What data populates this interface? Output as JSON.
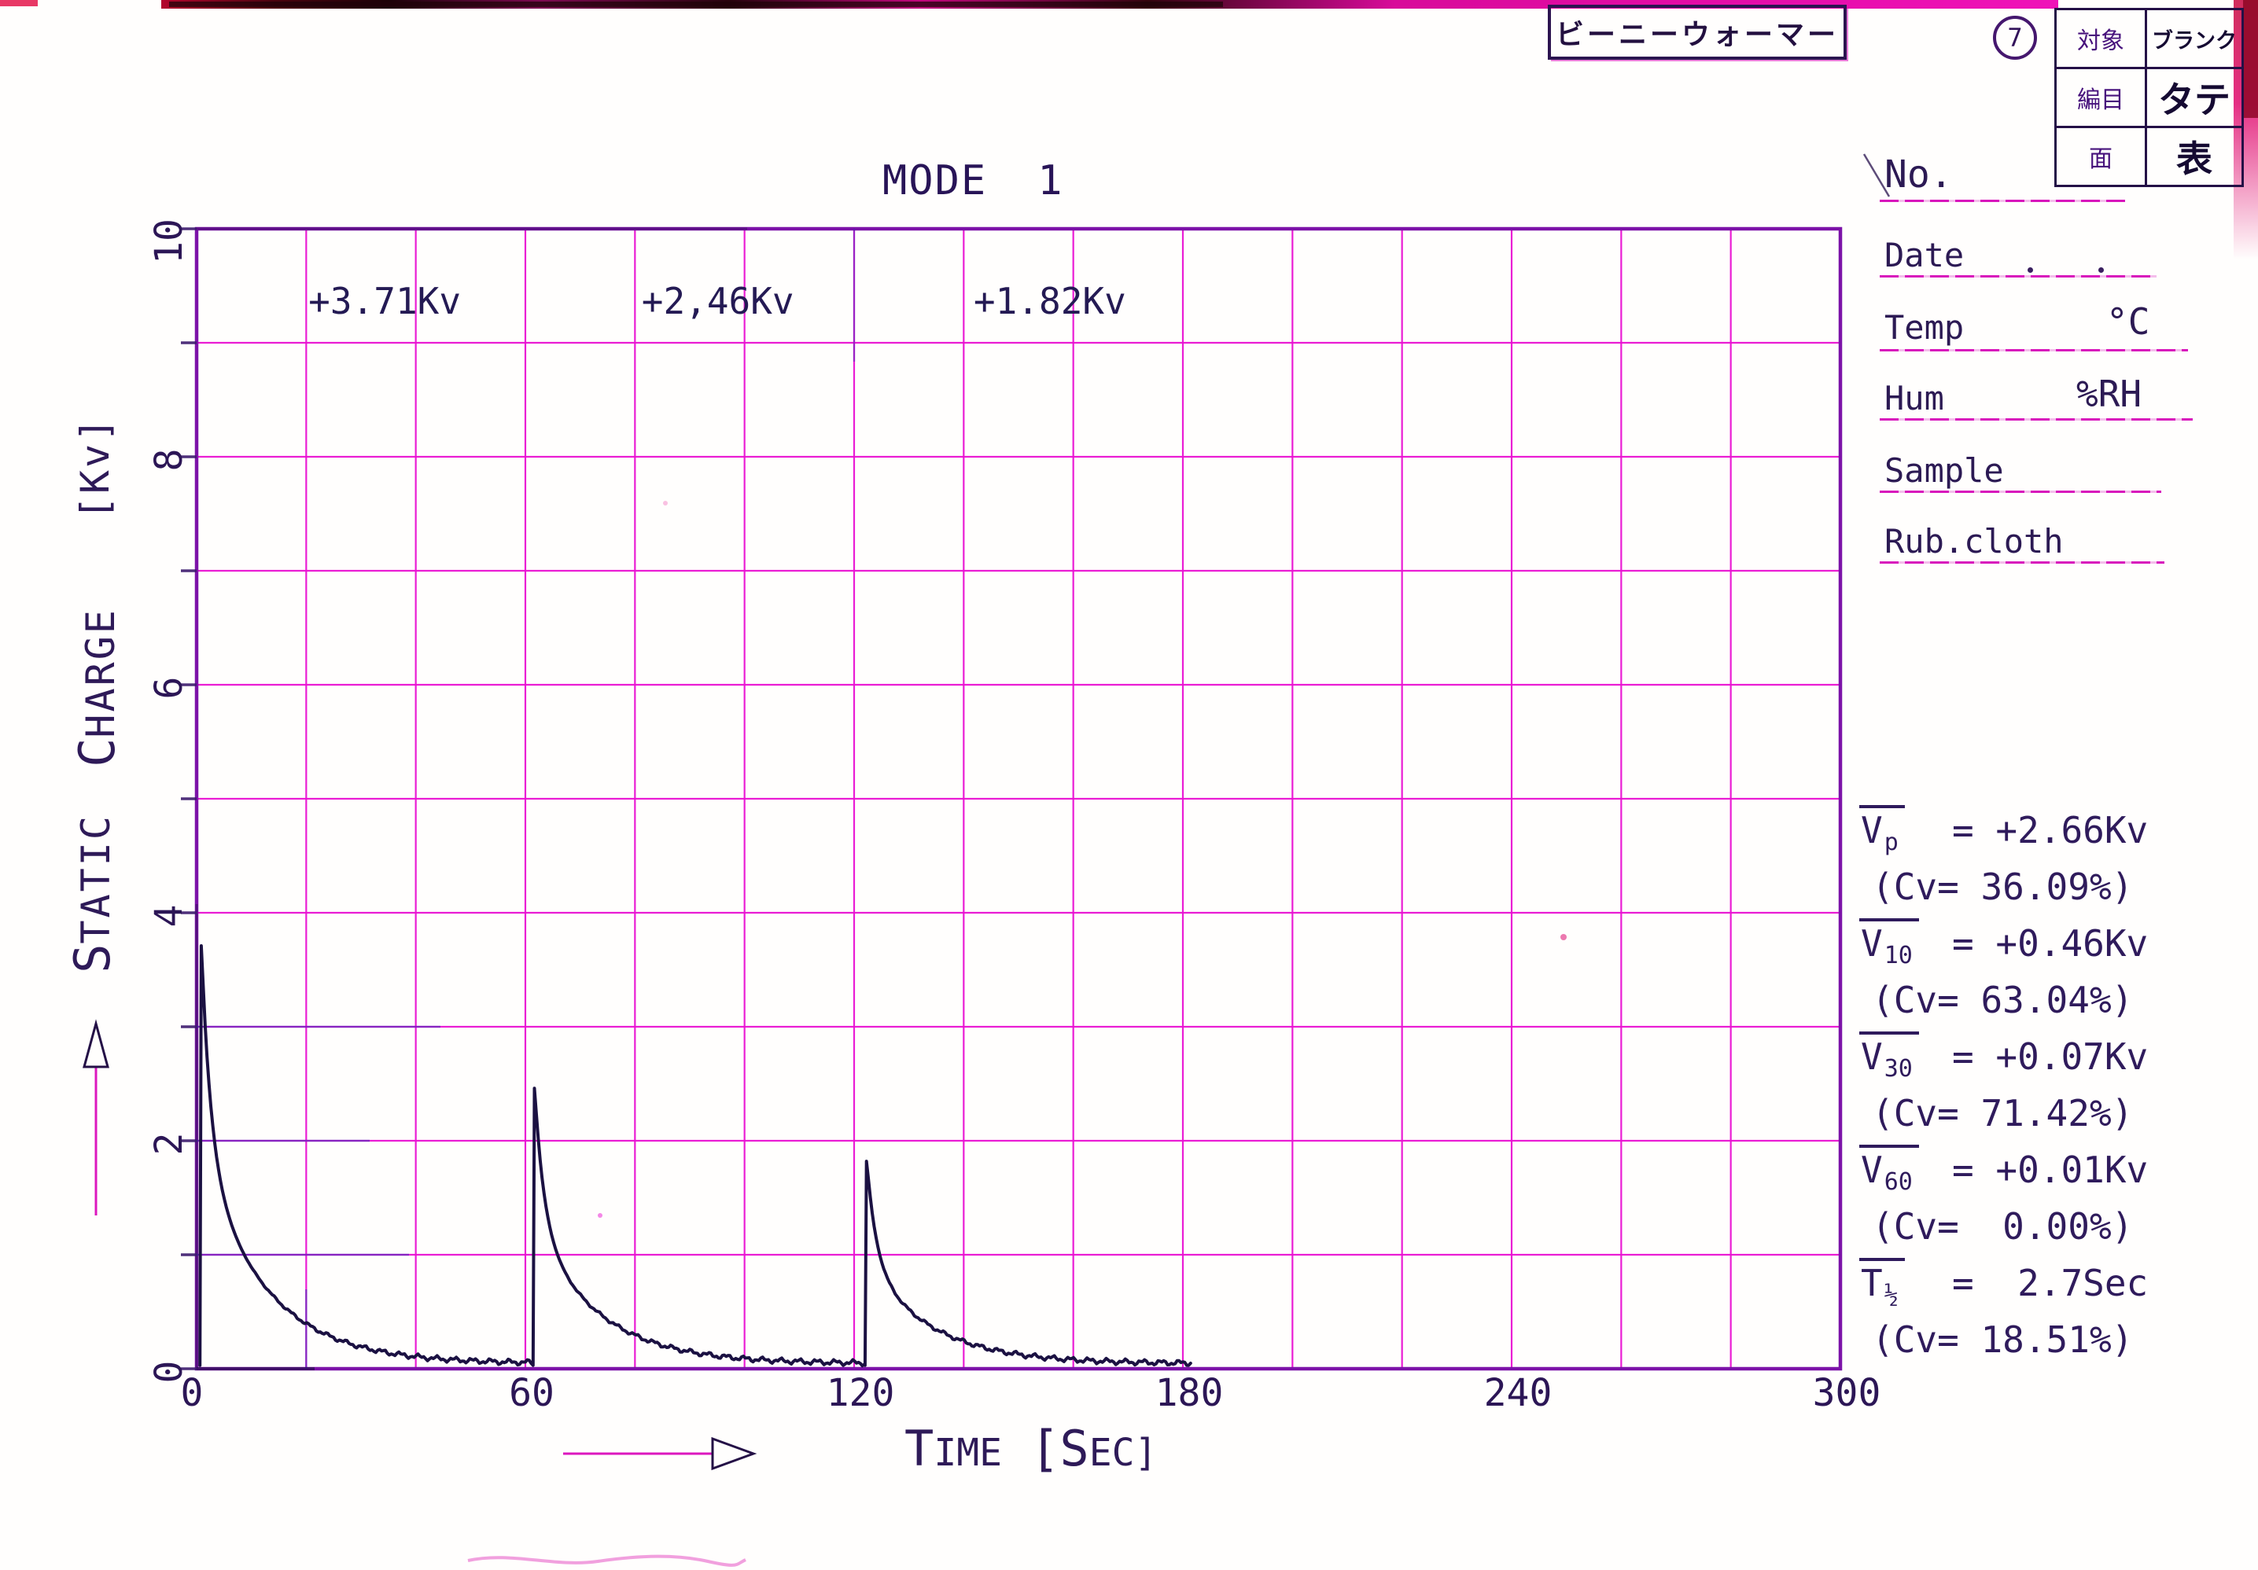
{
  "stamp": {
    "text": "ビーニーウォーマー"
  },
  "page_badge": "7",
  "info_table": {
    "rows": [
      {
        "label": "対象",
        "value": "ブランク"
      },
      {
        "label": "編目",
        "value": "タテ"
      },
      {
        "label": "面",
        "value": "表"
      }
    ]
  },
  "form": {
    "no": {
      "label": "No."
    },
    "date": {
      "label": "Date"
    },
    "temp": {
      "label": "Temp",
      "unit": "°C"
    },
    "hum": {
      "label": "Hum",
      "unit": "%RH"
    },
    "sample": {
      "label": "Sample"
    },
    "rub_cloth": {
      "label": "Rub.cloth"
    }
  },
  "title": "MODE 1",
  "title_parts": [
    "MODE",
    "1"
  ],
  "y_axis": {
    "word1": {
      "initial": "S",
      "rest": "TATIC"
    },
    "word2": {
      "initial": "C",
      "rest": "HARGE"
    },
    "units": "[Kv]"
  },
  "x_axis": {
    "parts": [
      "T",
      "IME",
      "[S",
      "EC]"
    ]
  },
  "stats": [
    {
      "var": "V",
      "sub": "p",
      "value": "= +2.66Kv"
    },
    {
      "cv": "(Cv= 36.09%)"
    },
    {
      "var": "V",
      "sub": "10",
      "value": "= +0.46Kv"
    },
    {
      "cv": "(Cv= 63.04%)"
    },
    {
      "var": "V",
      "sub": "30",
      "value": "= +0.07Kv"
    },
    {
      "cv": "(Cv= 71.42%)"
    },
    {
      "var": "V",
      "sub": "60",
      "value": "= +0.01Kv"
    },
    {
      "cv": "(Cv=  0.00%)"
    },
    {
      "var": "T",
      "sub": "½",
      "value": "=  2.7Sec"
    },
    {
      "cv": "(Cv= 18.51%)"
    }
  ],
  "chart_data": {
    "type": "line",
    "title": "MODE 1",
    "xlabel": "TIME [Sec]",
    "ylabel": "STATIC CHARGE [Kv]",
    "xlim": [
      0,
      300
    ],
    "ylim": [
      0,
      10
    ],
    "x_ticks": [
      0,
      60,
      120,
      180,
      240,
      300
    ],
    "y_ticks": [
      10,
      8,
      6,
      4,
      2,
      0
    ],
    "x_grid_step_sec": 20,
    "y_grid_step_kv": 1,
    "grid_on": true,
    "t_half_sec": 2.7,
    "series": [
      {
        "name": "decay-1",
        "t_start_sec": 0.6,
        "peak_kv": 3.71,
        "label": "+3.71Kv"
      },
      {
        "name": "decay-2",
        "t_start_sec": 61.4,
        "peak_kv": 2.46,
        "label": "+2,46Kv"
      },
      {
        "name": "decay-3",
        "t_start_sec": 122.0,
        "peak_kv": 1.82,
        "label": "+1.82Kv"
      }
    ],
    "trace_end_sec": 181.5,
    "baseline_kv": 0.05
  },
  "colors": {
    "grid_magenta": "#e911d2",
    "frame_purple": "#7c12a8",
    "pen_navy": "#1b1142",
    "print_purple": "#2e1a58",
    "underline_magenta": "#dc17be",
    "stamp_red": "#c2063c",
    "blue_overlay": "#2a2bb0"
  }
}
